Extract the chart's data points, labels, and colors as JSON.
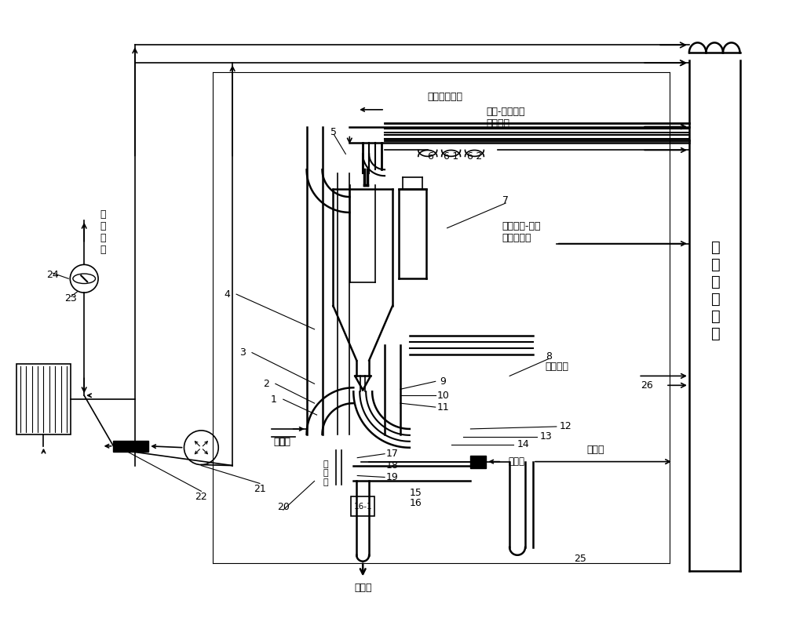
{
  "figsize": [
    10.0,
    7.88
  ],
  "bg_color": "#ffffff",
  "lw": 1.2,
  "lw2": 1.8,
  "annotations": {
    "nqxfbc": "氮气清洗反吹",
    "nq_label": "氮气-进入汽化\n冷却烟道",
    "zlmq_label": "转炉煤气-进入\n二级过滤器",
    "zlmq2": "转炉煤气",
    "nq2": "氮气",
    "gys": "高压水",
    "gys2": "高\n压\n水",
    "zfxy": "至\n分\n析\n仪",
    "pzk": "排渣口",
    "psk": "排水口",
    "duct_label": "汽\n化\n冷\n却\n烟\n道"
  }
}
